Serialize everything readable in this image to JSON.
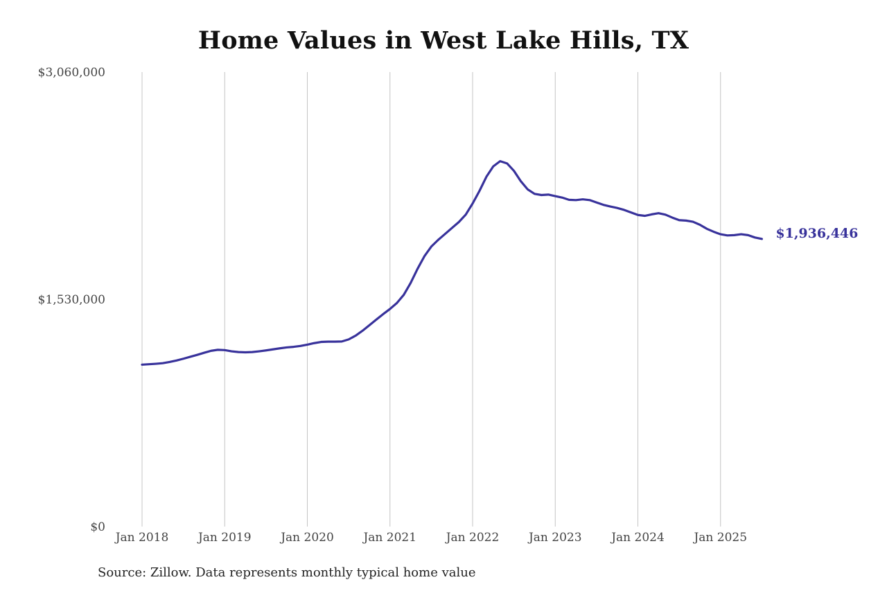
{
  "chart_data": {
    "type": "line",
    "title": "Home Values in West Lake Hills, TX",
    "source": "Source: Zillow. Data represents monthly typical home value",
    "ylim": [
      0,
      3060000
    ],
    "y_ticks": [
      "$0",
      "$1,530,000",
      "$3,060,000"
    ],
    "y_tick_values": [
      0,
      1530000,
      3060000
    ],
    "x_ticks": [
      "Jan 2018",
      "Jan 2019",
      "Jan 2020",
      "Jan 2021",
      "Jan 2022",
      "Jan 2023",
      "Jan 2024",
      "Jan 2025"
    ],
    "x_tick_dates": [
      "2018-01",
      "2019-01",
      "2020-01",
      "2021-01",
      "2022-01",
      "2023-01",
      "2024-01",
      "2025-01"
    ],
    "xlim": [
      "2018-01",
      "2025-12"
    ],
    "grid": "vertical",
    "end_label": "$1,936,446",
    "series": [
      {
        "color": "#38329b",
        "x": [
          "2018-01",
          "2018-02",
          "2018-03",
          "2018-04",
          "2018-05",
          "2018-06",
          "2018-07",
          "2018-08",
          "2018-09",
          "2018-10",
          "2018-11",
          "2018-12",
          "2019-01",
          "2019-02",
          "2019-03",
          "2019-04",
          "2019-05",
          "2019-06",
          "2019-07",
          "2019-08",
          "2019-09",
          "2019-10",
          "2019-11",
          "2019-12",
          "2020-01",
          "2020-02",
          "2020-03",
          "2020-04",
          "2020-05",
          "2020-06",
          "2020-07",
          "2020-08",
          "2020-09",
          "2020-10",
          "2020-11",
          "2020-12",
          "2021-01",
          "2021-02",
          "2021-03",
          "2021-04",
          "2021-05",
          "2021-06",
          "2021-07",
          "2021-08",
          "2021-09",
          "2021-10",
          "2021-11",
          "2021-12",
          "2022-01",
          "2022-02",
          "2022-03",
          "2022-04",
          "2022-05",
          "2022-06",
          "2022-07",
          "2022-08",
          "2022-09",
          "2022-10",
          "2022-11",
          "2022-12",
          "2023-01",
          "2023-02",
          "2023-03",
          "2023-04",
          "2023-05",
          "2023-06",
          "2023-07",
          "2023-08",
          "2023-09",
          "2023-10",
          "2023-11",
          "2023-12",
          "2024-01",
          "2024-02",
          "2024-03",
          "2024-04",
          "2024-05",
          "2024-06",
          "2024-07",
          "2024-08",
          "2024-09",
          "2024-10",
          "2024-11",
          "2024-12",
          "2025-01",
          "2025-02",
          "2025-03",
          "2025-04",
          "2025-05",
          "2025-06",
          "2025-07"
        ],
        "values": [
          1090000,
          1093000,
          1096000,
          1100000,
          1108000,
          1118000,
          1130000,
          1143000,
          1156000,
          1170000,
          1183000,
          1190000,
          1188000,
          1180000,
          1175000,
          1173000,
          1175000,
          1180000,
          1186000,
          1193000,
          1200000,
          1206000,
          1210000,
          1216000,
          1225000,
          1235000,
          1243000,
          1245000,
          1245000,
          1246000,
          1260000,
          1285000,
          1318000,
          1355000,
          1393000,
          1430000,
          1465000,
          1505000,
          1560000,
          1640000,
          1735000,
          1820000,
          1885000,
          1930000,
          1970000,
          2010000,
          2050000,
          2100000,
          2175000,
          2260000,
          2355000,
          2425000,
          2460000,
          2445000,
          2395000,
          2325000,
          2270000,
          2240000,
          2232000,
          2235000,
          2225000,
          2215000,
          2200000,
          2198000,
          2203000,
          2198000,
          2182000,
          2166000,
          2155000,
          2145000,
          2132000,
          2115000,
          2098000,
          2092000,
          2102000,
          2110000,
          2100000,
          2080000,
          2063000,
          2060000,
          2052000,
          2032000,
          2005000,
          1985000,
          1968000,
          1960000,
          1962000,
          1968000,
          1962000,
          1946000,
          1936446
        ]
      }
    ]
  }
}
